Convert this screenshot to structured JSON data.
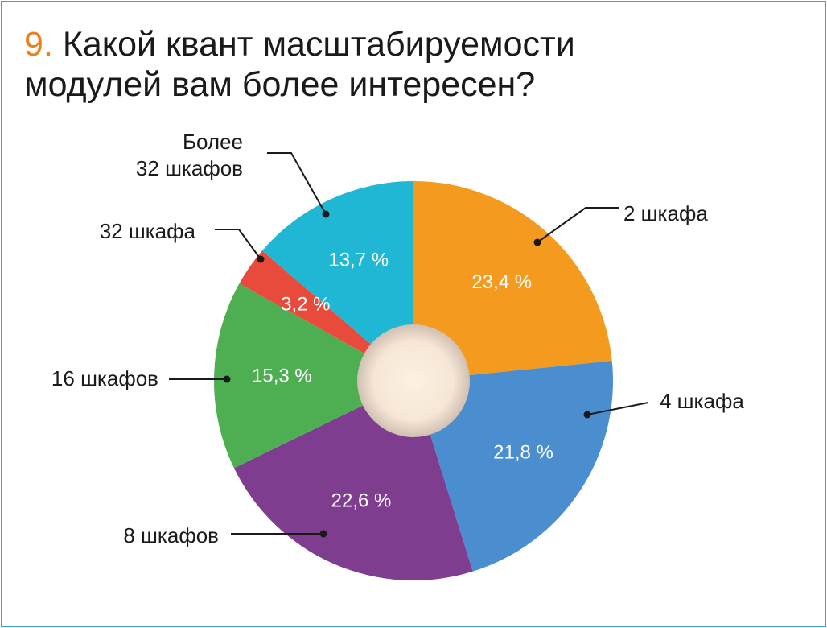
{
  "chart_data": {
    "type": "pie",
    "title_number": "9.",
    "title": "Какой квант масштабируемости модулей вам более интересен?",
    "categories": [
      "2 шкафа",
      "4 шкафа",
      "8 шкафов",
      "16 шкафов",
      "32 шкафа",
      "Более\n32 шкафов"
    ],
    "values": [
      23.4,
      21.8,
      22.6,
      15.3,
      3.2,
      13.7
    ],
    "value_labels": [
      "23,4 %",
      "21,8 %",
      "22,6 %",
      "15,3 %",
      "3,2 %",
      "13,7 %"
    ],
    "colors": [
      "#f39a1f",
      "#4a8ecf",
      "#7e3d8f",
      "#4daf51",
      "#e84a3c",
      "#1fb7d3"
    ]
  }
}
